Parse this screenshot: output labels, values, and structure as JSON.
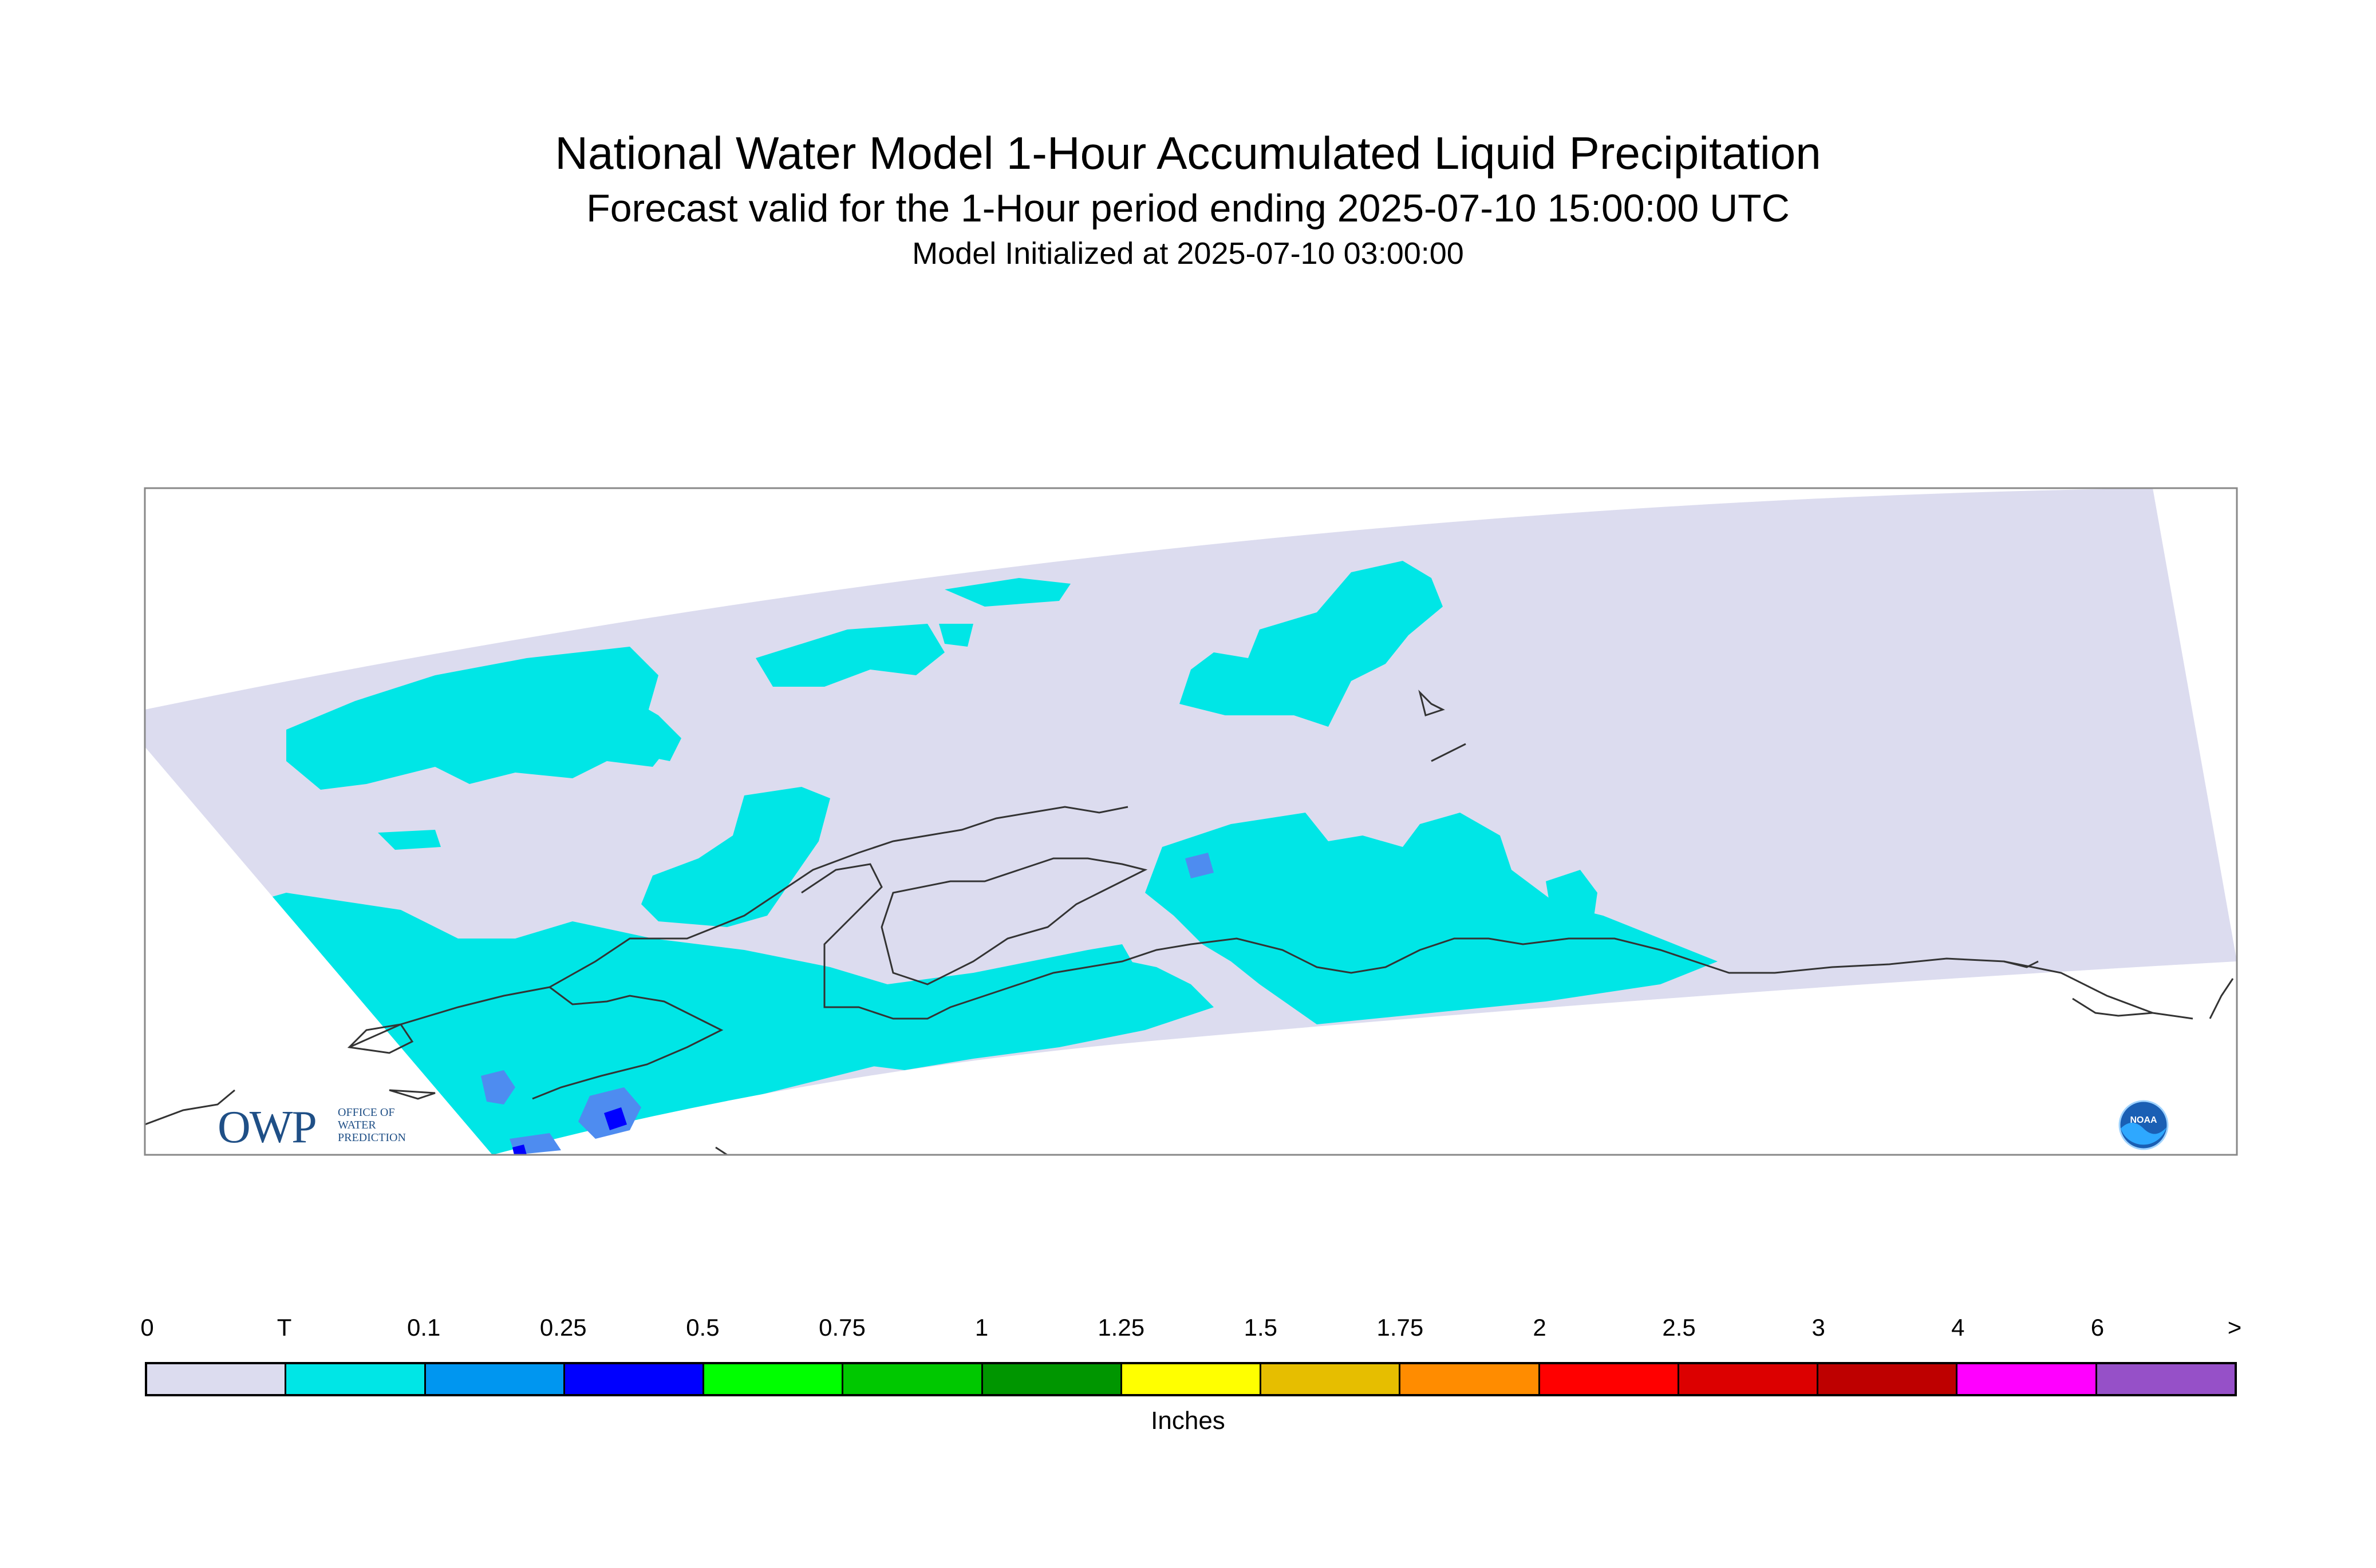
{
  "titles": {
    "main": "National Water Model 1-Hour Accumulated Liquid Precipitation",
    "forecast": "Forecast valid for the 1-Hour period ending 2025-07-10 15:00:00 UTC",
    "init": "Model Initialized at 2025-07-10 03:00:00"
  },
  "legend": {
    "units": "Inches",
    "labels": [
      "0",
      "T",
      "0.1",
      "0.25",
      "0.5",
      "0.75",
      "1",
      "1.25",
      "1.5",
      "1.75",
      "2",
      "2.5",
      "3",
      "4",
      "6",
      ">"
    ],
    "colors": [
      "#dcdcef",
      "#00e6e6",
      "#0096f0",
      "#0000ff",
      "#00ff00",
      "#00c800",
      "#009600",
      "#ffff00",
      "#e6be00",
      "#ff8c00",
      "#ff0000",
      "#dc0000",
      "#be0000",
      "#ff00ff",
      "#9650c8"
    ]
  },
  "map": {
    "colors": {
      "domain": "#dcdcef",
      "trace": "#00e6e6",
      "light": "#4e8cf0",
      "medium": "#0000ff",
      "coast": "#333333",
      "frame": "#888888"
    }
  },
  "logos": {
    "owp_short": "OWP",
    "owp_lines": [
      "OFFICE OF",
      "WATER",
      "PREDICTION"
    ],
    "noaa": "NOAA"
  }
}
